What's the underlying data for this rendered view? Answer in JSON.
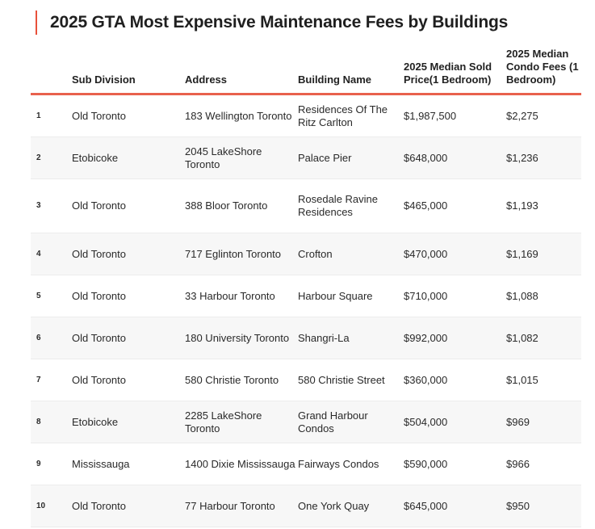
{
  "title": "2025 GTA Most Expensive Maintenance Fees by Buildings",
  "columns": {
    "sub_division": "Sub Division",
    "address": "Address",
    "building": "Building Name",
    "price": "2025 Median Sold Price(1 Bedroom)",
    "fees": "2025 Median Condo Fees (1 Bedroom)"
  },
  "rows": [
    {
      "rank": "1",
      "sub": "Old Toronto",
      "address": "183 Wellington Toronto",
      "building": "Residences Of The Ritz Carlton",
      "price": "$1,987,500",
      "fees": "$2,275"
    },
    {
      "rank": "2",
      "sub": "Etobicoke",
      "address": "2045 LakeShore Toronto",
      "building": "Palace Pier",
      "price": "$648,000",
      "fees": "$1,236"
    },
    {
      "rank": "3",
      "sub": "Old Toronto",
      "address": "388 Bloor Toronto",
      "building": "Rosedale Ravine Residences",
      "price": "$465,000",
      "fees": "$1,193"
    },
    {
      "rank": "4",
      "sub": "Old Toronto",
      "address": "717 Eglinton Toronto",
      "building": "Crofton",
      "price": "$470,000",
      "fees": "$1,169"
    },
    {
      "rank": "5",
      "sub": "Old Toronto",
      "address": "33 Harbour Toronto",
      "building": "Harbour Square",
      "price": "$710,000",
      "fees": "$1,088"
    },
    {
      "rank": "6",
      "sub": "Old Toronto",
      "address": "180 University Toronto",
      "building": "Shangri-La",
      "price": "$992,000",
      "fees": "$1,082"
    },
    {
      "rank": "7",
      "sub": "Old Toronto",
      "address": "580 Christie Toronto",
      "building": "580 Christie Street",
      "price": "$360,000",
      "fees": "$1,015"
    },
    {
      "rank": "8",
      "sub": "Etobicoke",
      "address": "2285 LakeShore Toronto",
      "building": "Grand Harbour Condos",
      "price": "$504,000",
      "fees": "$969"
    },
    {
      "rank": "9",
      "sub": "Mississauga",
      "address": "1400 Dixie Mississauga",
      "building": "Fairways Condos",
      "price": "$590,000",
      "fees": "$966"
    },
    {
      "rank": "10",
      "sub": "Old Toronto",
      "address": "77 Harbour Toronto",
      "building": "One York Quay",
      "price": "$645,000",
      "fees": "$950"
    }
  ],
  "colors": {
    "accent": "#e8614d",
    "row_alt": "#f7f7f7"
  }
}
